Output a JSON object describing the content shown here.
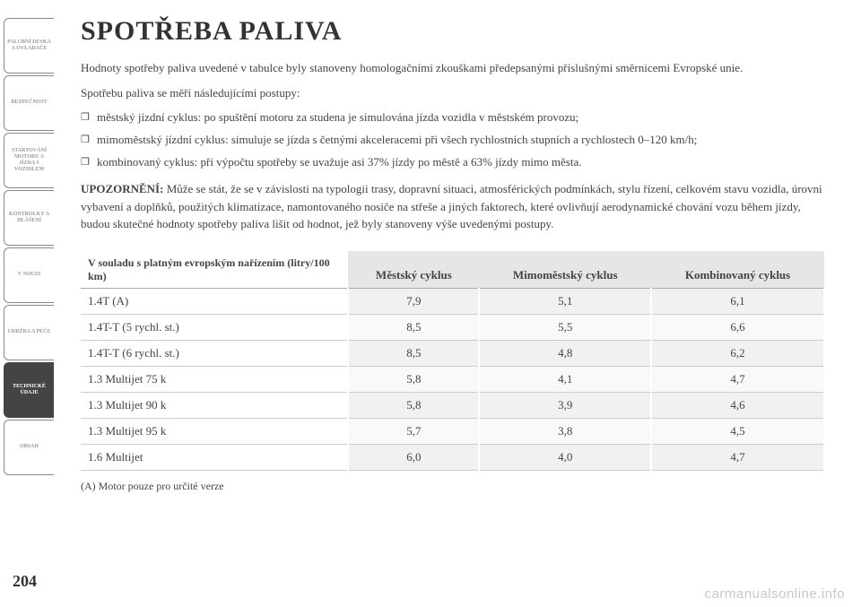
{
  "sidebar": {
    "tabs": [
      {
        "label": "PALUBNÍ DESKA A OVLADAČE",
        "active": false
      },
      {
        "label": "BEZPEČNOST",
        "active": false
      },
      {
        "label": "STARTOVÁNÍ MOTORU A JÍZDA S VOZIDLEM",
        "active": false
      },
      {
        "label": "KONTROLKY A HLÁŠENÍ",
        "active": false
      },
      {
        "label": "V NOUZI",
        "active": false
      },
      {
        "label": "ÚDRŽBA A PÉČE",
        "active": false
      },
      {
        "label": "TECHNICKÉ ÚDAJE",
        "active": true
      },
      {
        "label": "OBSAH",
        "active": false
      }
    ]
  },
  "title": "SPOTŘEBA PALIVA",
  "intro1": "Hodnoty spotřeby paliva uvedené v tabulce byly stanoveny homologačními zkouškami předepsanými příslušnými směrnicemi Evropské unie.",
  "intro2": "Spotřebu paliva se měří následujícími postupy:",
  "bullets": [
    "městský jízdní cyklus: po spuštění motoru za studena je simulována jízda vozidla v městském provozu;",
    "mimoměstský jízdní cyklus: simuluje se jízda s četnými akceleracemi při všech rychlostních stupních a rychlostech 0–120 km/h;",
    "kombinovaný cyklus: při výpočtu spotřeby se uvažuje asi 37% jízdy po městě a 63% jízdy mimo města."
  ],
  "warning_label": "UPOZORNĚNÍ:",
  "warning_text": " Může se stát, že se v závislosti na typologii trasy, dopravní situaci, atmosférických podmínkách, stylu řízení, celkovém stavu vozidla, úrovni vybavení a doplňků, použitých klimatizace, namontovaného nosiče na střeše a jiných faktorech, které ovlivňují aerodynamické chování vozu během jízdy, budou skutečné hodnoty spotřeby paliva lišit od hodnot, jež byly stanoveny výše uvedenými postupy.",
  "table": {
    "caption": "V souladu s platným evropským nařízením (litry/100 km)",
    "headers": [
      "Městský cyklus",
      "Mimoměstský cyklus",
      "Kombinovaný cyklus"
    ],
    "rows": [
      {
        "label": "1.4T (A)",
        "v": [
          "7,9",
          "5,1",
          "6,1"
        ]
      },
      {
        "label": "1.4T-T (5 rychl. st.)",
        "v": [
          "8,5",
          "5,5",
          "6,6"
        ]
      },
      {
        "label": "1.4T-T (6 rychl. st.)",
        "v": [
          "8,5",
          "4,8",
          "6,2"
        ]
      },
      {
        "label": "1.3 Multijet 75 k",
        "v": [
          "5,8",
          "4,1",
          "4,7"
        ]
      },
      {
        "label": "1.3 Multijet 90 k",
        "v": [
          "5,8",
          "3,9",
          "4,6"
        ]
      },
      {
        "label": "1.3 Multijet 95 k",
        "v": [
          "5,7",
          "3,8",
          "4,5"
        ]
      },
      {
        "label": "1.6 Multijet",
        "v": [
          "6,0",
          "4,0",
          "4,7"
        ]
      }
    ],
    "footnote": "(A) Motor pouze pro určité verze"
  },
  "page_number": "204",
  "watermark": "carmanualsonline.info",
  "colors": {
    "text": "#3a3a3a",
    "tab_active_bg": "#444444",
    "tab_active_fg": "#ffffff",
    "table_header_bg": "#e6e6e6",
    "table_row_bg": "#f1f1f1"
  }
}
